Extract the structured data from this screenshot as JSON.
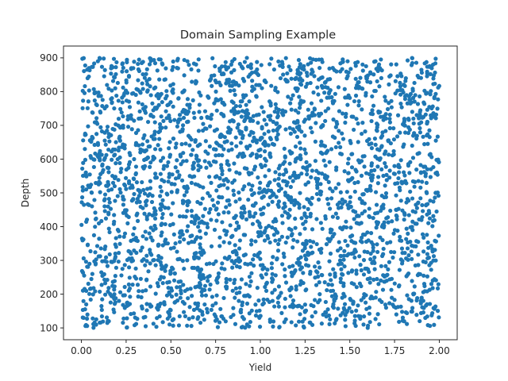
{
  "chart_data": {
    "type": "scatter",
    "title": "Domain Sampling Example",
    "xlabel": "Yield",
    "ylabel": "Depth",
    "xlim": [
      -0.1,
      2.1
    ],
    "ylim": [
      65,
      935
    ],
    "xticks": [
      0.0,
      0.25,
      0.5,
      0.75,
      1.0,
      1.25,
      1.5,
      1.75,
      2.0
    ],
    "xtick_labels": [
      "0.00",
      "0.25",
      "0.50",
      "0.75",
      "1.00",
      "1.25",
      "1.50",
      "1.75",
      "2.00"
    ],
    "yticks": [
      100,
      200,
      300,
      400,
      500,
      600,
      700,
      800,
      900
    ],
    "ytick_labels": [
      "100",
      "200",
      "300",
      "400",
      "500",
      "600",
      "700",
      "800",
      "900"
    ],
    "grid": false,
    "legend": "none",
    "series": [
      {
        "color": "#1f77b4",
        "marker": "circle",
        "distribution": "uniform",
        "x_range": [
          0.0,
          2.0
        ],
        "y_range": [
          100,
          900
        ],
        "point_count": 3000
      }
    ]
  }
}
